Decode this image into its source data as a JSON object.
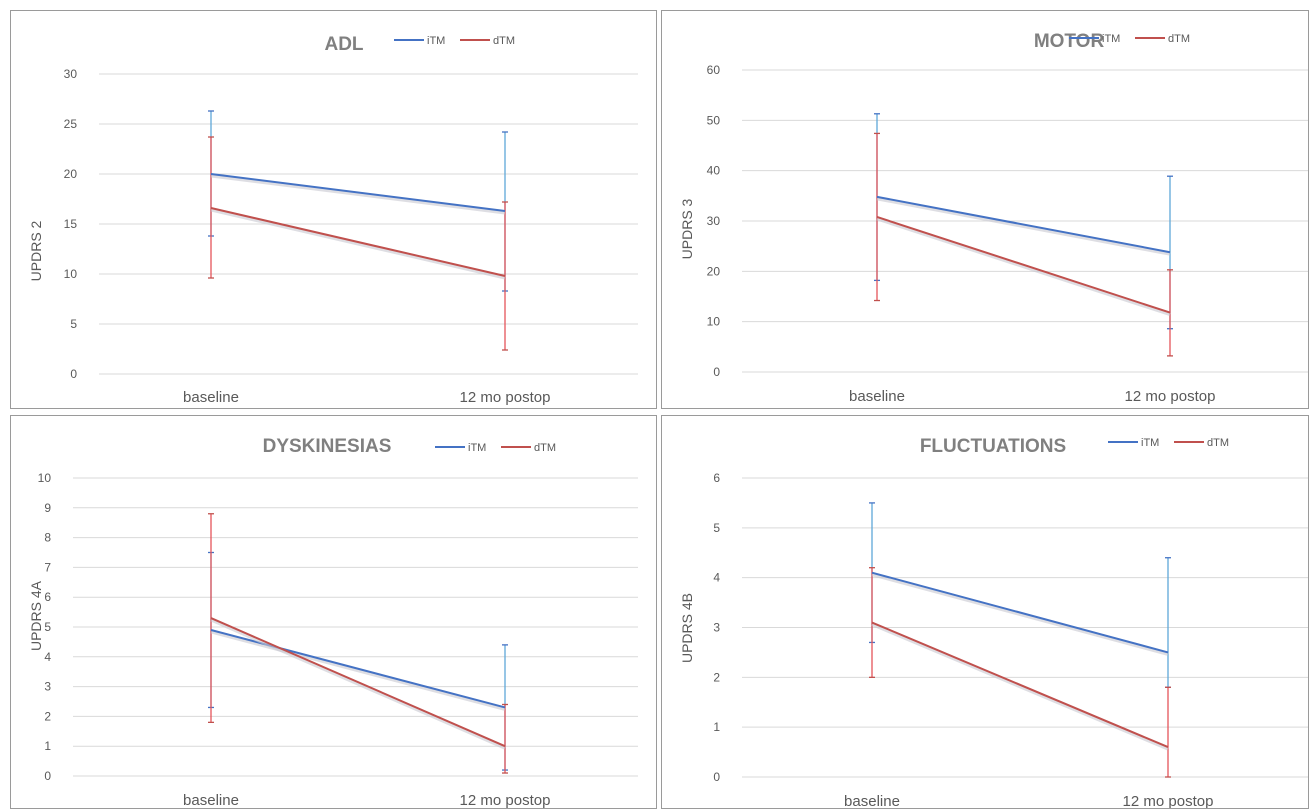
{
  "colors": {
    "iTM": "#4472c4",
    "iTM_error": "#5fa8d8",
    "dTM": "#c0504d",
    "dTM_error": "#e5555a",
    "grid": "#d9d9d9",
    "text": "#595959",
    "title": "#808080"
  },
  "chart_data": [
    {
      "type": "line",
      "title": "ADL",
      "ylabel": "UPDRS 2",
      "xlabel": "",
      "categories": [
        "baseline",
        "12 mo postop"
      ],
      "ylim": [
        0,
        30
      ],
      "yticks": [
        0,
        5,
        10,
        15,
        20,
        25,
        30
      ],
      "grid": true,
      "legend": "top",
      "series": [
        {
          "name": "iTM",
          "values": [
            20.0,
            16.3
          ],
          "err_low": [
            13.8,
            8.3
          ],
          "err_high": [
            26.3,
            24.2
          ]
        },
        {
          "name": "dTM",
          "values": [
            16.6,
            9.8
          ],
          "err_low": [
            9.6,
            2.4
          ],
          "err_high": [
            23.7,
            17.2
          ]
        }
      ]
    },
    {
      "type": "line",
      "title": "MOTOR",
      "ylabel": "UPDRS 3",
      "xlabel": "",
      "categories": [
        "baseline",
        "12 mo postop"
      ],
      "ylim": [
        0,
        60
      ],
      "yticks": [
        0,
        10,
        20,
        30,
        40,
        50,
        60
      ],
      "grid": true,
      "legend": "top",
      "series": [
        {
          "name": "iTM",
          "values": [
            34.8,
            23.8
          ],
          "err_low": [
            18.2,
            8.6
          ],
          "err_high": [
            51.3,
            38.9
          ]
        },
        {
          "name": "dTM",
          "values": [
            30.8,
            11.8
          ],
          "err_low": [
            14.2,
            3.2
          ],
          "err_high": [
            47.4,
            20.3
          ]
        }
      ]
    },
    {
      "type": "line",
      "title": "DYSKINESIAS",
      "ylabel": "UPDRS 4A",
      "xlabel": "",
      "categories": [
        "baseline",
        "12 mo postop"
      ],
      "ylim": [
        0,
        10
      ],
      "yticks": [
        0,
        1,
        2,
        3,
        4,
        5,
        6,
        7,
        8,
        9,
        10
      ],
      "grid": true,
      "legend": "top",
      "series": [
        {
          "name": "iTM",
          "values": [
            4.9,
            2.3
          ],
          "err_low": [
            2.3,
            0.2
          ],
          "err_high": [
            7.5,
            4.4
          ]
        },
        {
          "name": "dTM",
          "values": [
            5.3,
            1.0
          ],
          "err_low": [
            1.8,
            0.1
          ],
          "err_high": [
            8.8,
            2.4
          ]
        }
      ]
    },
    {
      "type": "line",
      "title": "FLUCTUATIONS",
      "ylabel": "UPDRS 4B",
      "xlabel": "",
      "categories": [
        "baseline",
        "12 mo postop"
      ],
      "ylim": [
        0,
        6
      ],
      "yticks": [
        0,
        1,
        2,
        3,
        4,
        5,
        6
      ],
      "grid": true,
      "legend": "top",
      "series": [
        {
          "name": "iTM",
          "values": [
            4.1,
            2.5
          ],
          "err_low": [
            2.7,
            1.8
          ],
          "err_high": [
            5.5,
            4.4
          ]
        },
        {
          "name": "dTM",
          "values": [
            3.1,
            0.6
          ],
          "err_low": [
            2.0,
            0.0
          ],
          "err_high": [
            4.2,
            1.8
          ]
        }
      ]
    }
  ]
}
